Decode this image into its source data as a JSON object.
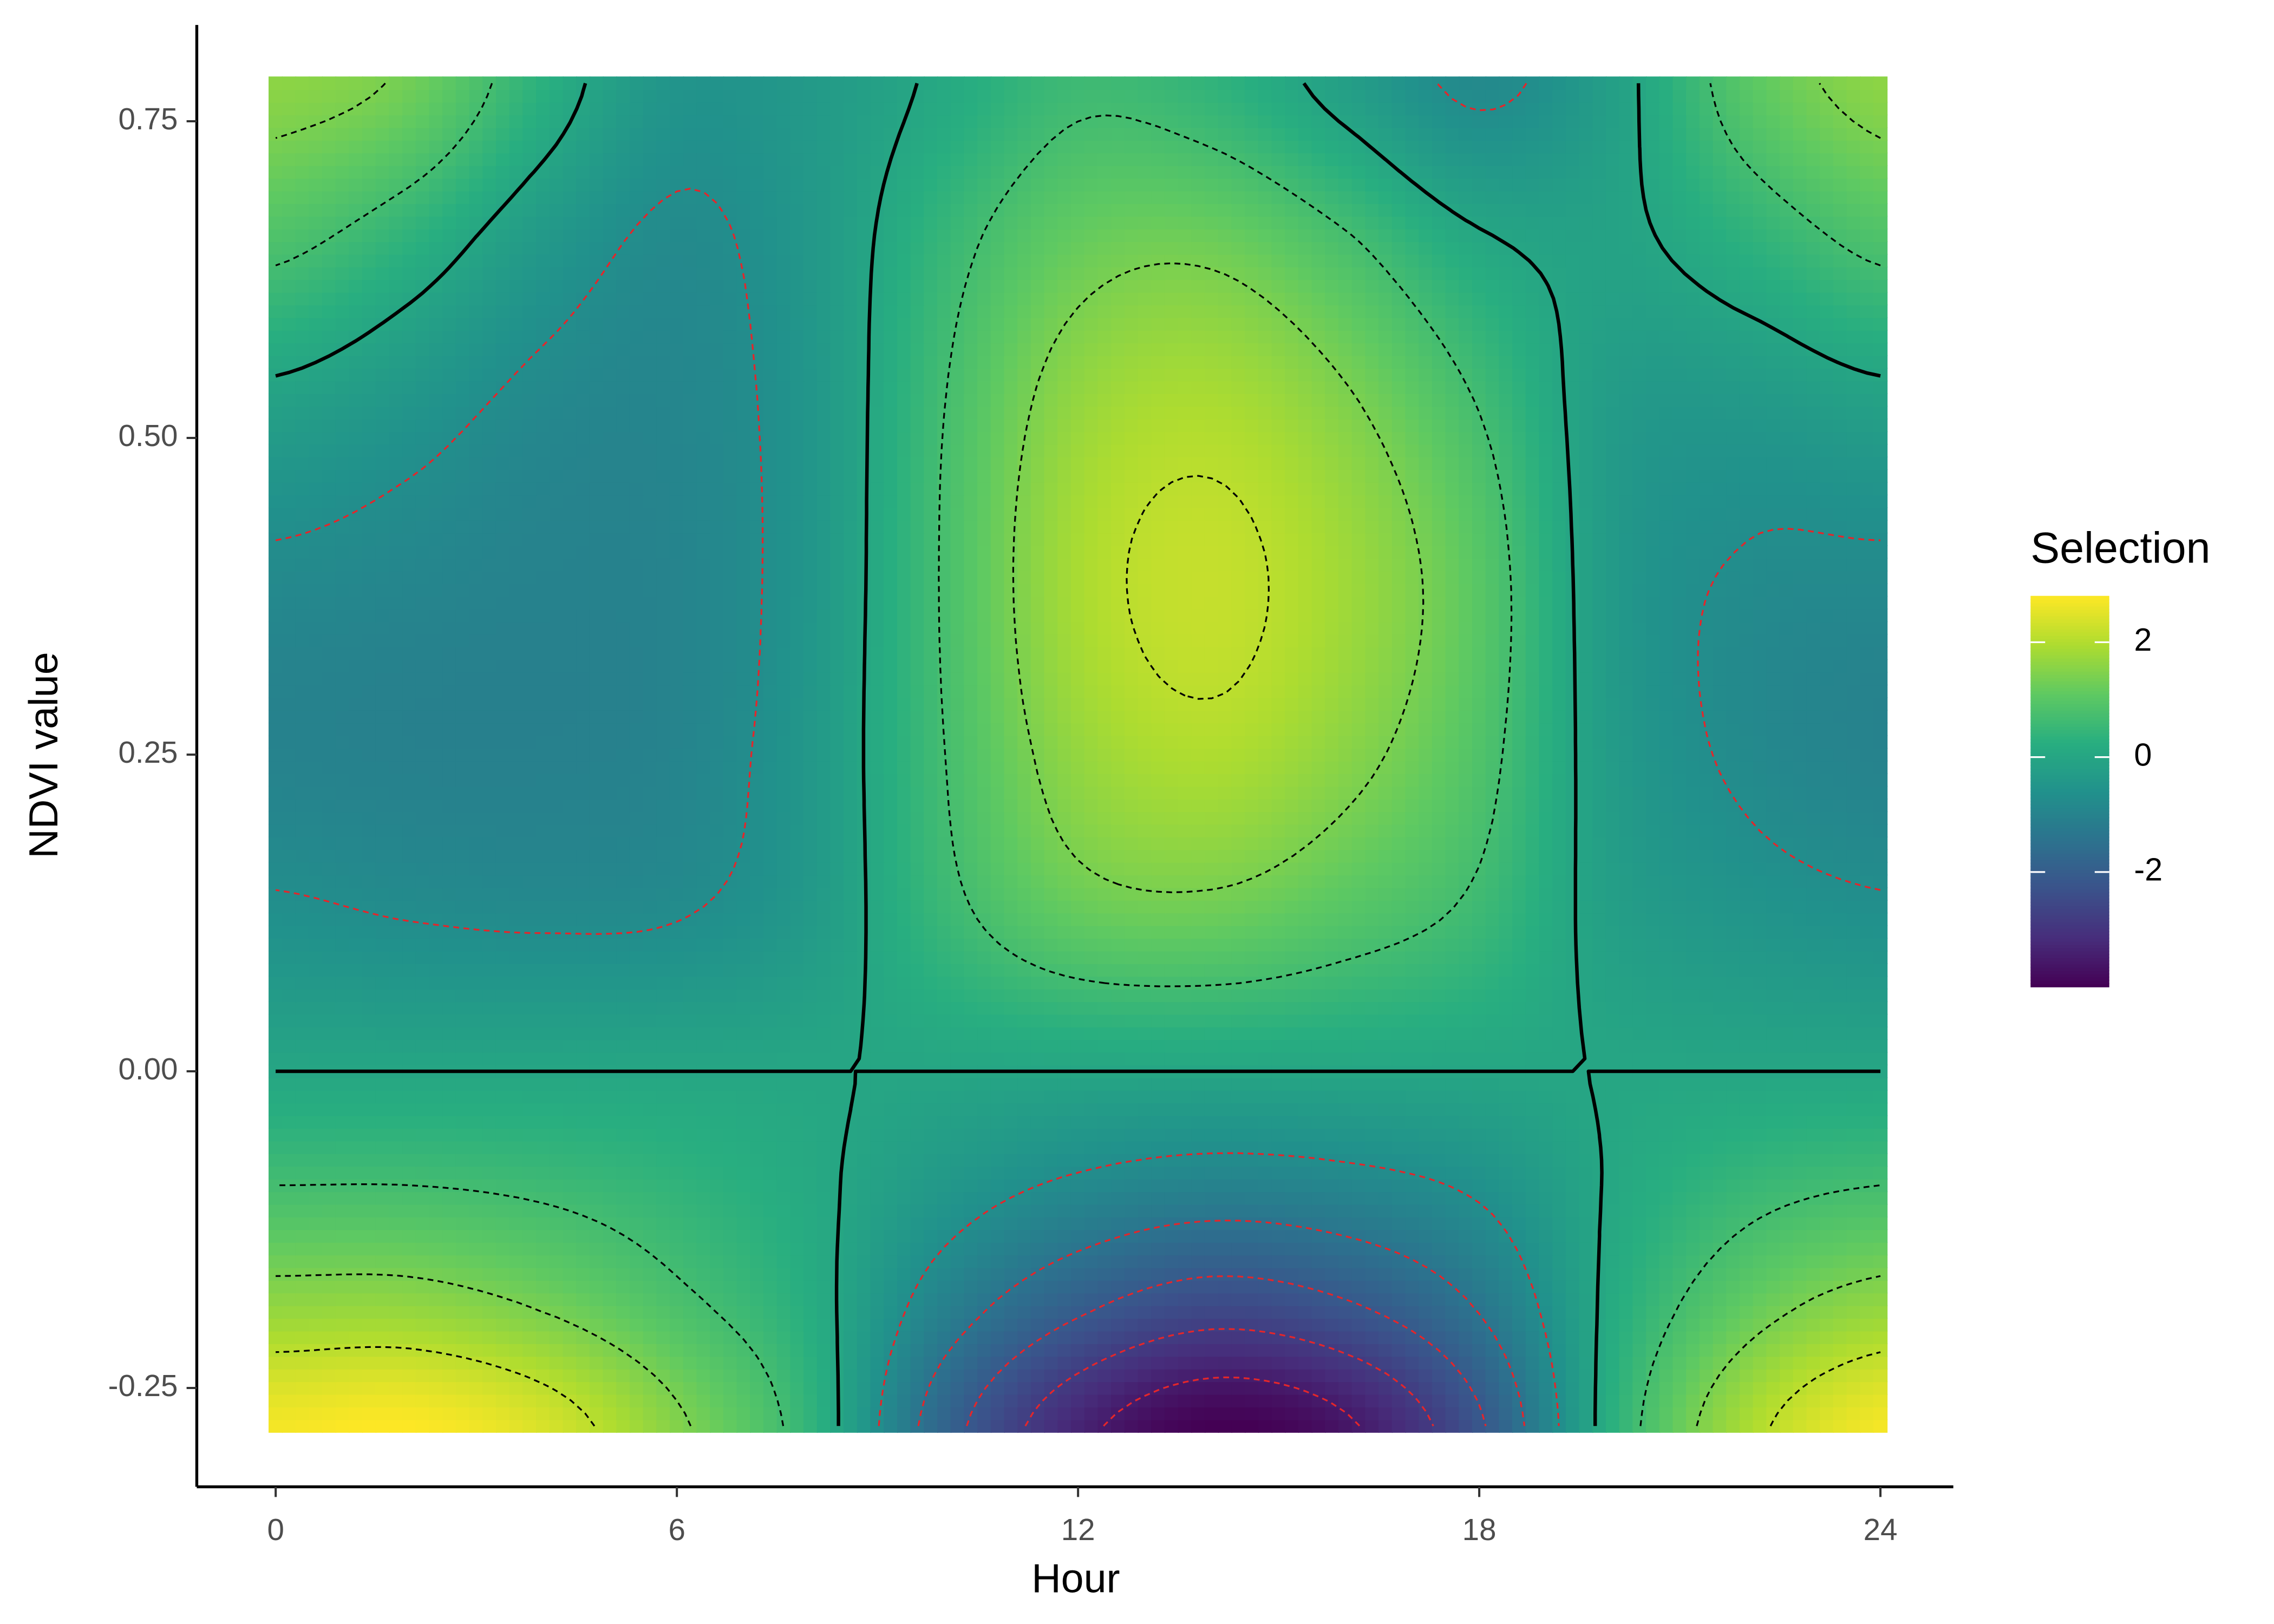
{
  "chart_data": {
    "type": "contour-heatmap",
    "xlabel": "Hour",
    "ylabel": "NDVI value",
    "legend_title": "Selection",
    "legend_position": "right",
    "x": [
      0,
      2,
      4,
      6,
      8,
      10,
      12,
      14,
      16,
      18,
      20,
      22,
      24
    ],
    "y": [
      -0.28,
      -0.18,
      -0.09,
      0,
      0.13,
      0.26,
      0.39,
      0.52,
      0.65,
      0.78
    ],
    "z": [
      [
        2.7,
        2.8,
        2.4,
        1.5,
        0.4,
        -1.8,
        -3.3,
        -4.0,
        -3.6,
        -2.2,
        0.3,
        1.9,
        2.7
      ],
      [
        1.6,
        1.6,
        1.3,
        0.8,
        0.2,
        -1.0,
        -1.9,
        -2.4,
        -2.1,
        -1.3,
        0.15,
        1.1,
        1.6
      ],
      [
        0.7,
        0.7,
        0.6,
        0.4,
        0.1,
        -0.4,
        -0.8,
        -1.0,
        -0.9,
        -0.6,
        0.05,
        0.5,
        0.7
      ],
      [
        0,
        0,
        0,
        0,
        0,
        0,
        0,
        0,
        0,
        0,
        0,
        0,
        0
      ],
      [
        -0.65,
        -0.75,
        -0.8,
        -0.75,
        -0.35,
        0.55,
        1.2,
        1.3,
        1.0,
        0.6,
        -0.2,
        -0.5,
        -0.65
      ],
      [
        -1.0,
        -1.05,
        -1.05,
        -0.95,
        -0.4,
        0.7,
        1.7,
        2.0,
        1.6,
        0.9,
        -0.3,
        -0.8,
        -1.0
      ],
      [
        -0.8,
        -0.9,
        -1.0,
        -0.95,
        -0.45,
        0.75,
        1.9,
        2.2,
        1.8,
        1.0,
        -0.35,
        -0.75,
        -0.8
      ],
      [
        -0.2,
        -0.5,
        -0.85,
        -0.9,
        -0.45,
        0.7,
        1.7,
        1.95,
        1.5,
        0.7,
        -0.3,
        -0.4,
        -0.2
      ],
      [
        0.8,
        0.3,
        -0.4,
        -0.8,
        -0.4,
        0.5,
        1.2,
        1.3,
        0.8,
        0.1,
        -0.1,
        0.3,
        0.8
      ],
      [
        1.6,
        1.3,
        0.3,
        -0.5,
        -0.35,
        0.1,
        0.6,
        0.4,
        -0.2,
        -0.8,
        -0.2,
        1.0,
        1.6
      ]
    ],
    "contour_levels": [
      -3.5,
      -2.8,
      -2.1,
      -1.4,
      -0.7,
      0,
      0.7,
      1.4,
      2.1
    ],
    "contour_color": "#000000",
    "contour_color_negative": "#e3262b",
    "colormap": "viridis",
    "fill_lim": [
      -4.0,
      2.8
    ],
    "legend_ticks": [
      -2,
      0,
      2
    ],
    "xlim": [
      -1.18,
      25.09
    ],
    "ylim": [
      -0.328,
      0.826
    ],
    "xticks": [
      0,
      6,
      12,
      18,
      24
    ],
    "yticks": [
      -0.25,
      {
        "value": 0,
        "label": "0.00"
      },
      0.25,
      {
        "value": 0.5,
        "label": "0.50"
      },
      0.75
    ]
  }
}
